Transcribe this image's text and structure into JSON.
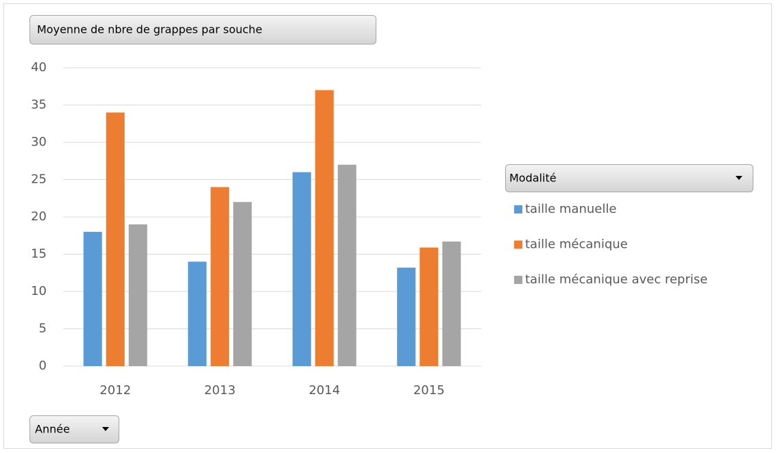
{
  "chart_data": {
    "type": "bar",
    "title": "Moyenne de nbre de grappes par souche",
    "x_field": "Année",
    "legend_title": "Modalité",
    "categories": [
      "2012",
      "2013",
      "2014",
      "2015"
    ],
    "series": [
      {
        "name": "taille manuelle",
        "color": "#5b9bd5",
        "values": [
          18,
          14,
          26,
          13.2
        ]
      },
      {
        "name": "taille mécanique",
        "color": "#ed7d31",
        "values": [
          34,
          24,
          37,
          15.9
        ]
      },
      {
        "name": "taille mécanique avec reprise",
        "color": "#a5a5a5",
        "values": [
          19,
          22,
          27,
          16.7
        ]
      }
    ],
    "ylim": [
      0,
      40
    ],
    "yticks": [
      0,
      5,
      10,
      15,
      20,
      25,
      30,
      35,
      40
    ],
    "grid": true,
    "legend": "right"
  }
}
